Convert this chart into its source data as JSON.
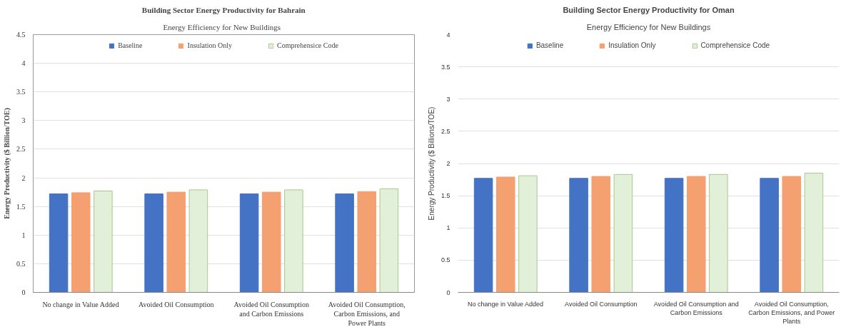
{
  "chart_data": [
    {
      "type": "bar",
      "title": "Building Sector Energy Productivity for Bahrain",
      "subtitle": "Energy  Efficiency  for New Buildings",
      "ylabel": "Energy Productivity ($ Billion/TOE)",
      "categories": [
        "No change in Value Added",
        "Avoided Oil Consumption",
        "Avoided Oil Consumption and Carbon Emissions",
        "Avoided Oil Consumption, Carbon Emissions, and Power Plants"
      ],
      "series": [
        {
          "name": "Baseline",
          "color": "#4472c4",
          "values": [
            1.72,
            1.72,
            1.72,
            1.72
          ]
        },
        {
          "name": "Insulation Only",
          "color": "#f4a070",
          "values": [
            1.74,
            1.75,
            1.75,
            1.76
          ]
        },
        {
          "name": "Comprehensice Code",
          "color": "#e2efd9",
          "values": [
            1.77,
            1.79,
            1.79,
            1.81
          ]
        }
      ],
      "ylim": [
        0,
        4.5
      ],
      "yticks": [
        0,
        0.5,
        1,
        1.5,
        2,
        2.5,
        3,
        3.5,
        4,
        4.5
      ],
      "grid": "y",
      "legend": "top"
    },
    {
      "type": "bar",
      "title": "Building Sector Energy Productivity for Oman",
      "subtitle": "Energy Efficiency for New Buildings",
      "ylabel": "Energy Productivity ($ Billions/TOE)",
      "categories": [
        "No change in Value Added",
        "Avoided Oil Consumption",
        "Avoided Oil Consumption and Carbon Emissions",
        "Avoided Oil Consumption, Carbon Emissions, and Power Plants"
      ],
      "series": [
        {
          "name": "Baseline",
          "color": "#4472c4",
          "values": [
            1.77,
            1.77,
            1.77,
            1.77
          ]
        },
        {
          "name": "Insulation Only",
          "color": "#f4a070",
          "values": [
            1.79,
            1.8,
            1.8,
            1.8
          ]
        },
        {
          "name": "Comprehensice Code",
          "color": "#e2efd9",
          "values": [
            1.81,
            1.83,
            1.83,
            1.85
          ]
        }
      ],
      "ylim": [
        0,
        4
      ],
      "yticks": [
        0,
        0.5,
        1,
        1.5,
        2,
        2.5,
        3,
        3.5,
        4
      ],
      "grid": "y",
      "legend": "top"
    }
  ]
}
